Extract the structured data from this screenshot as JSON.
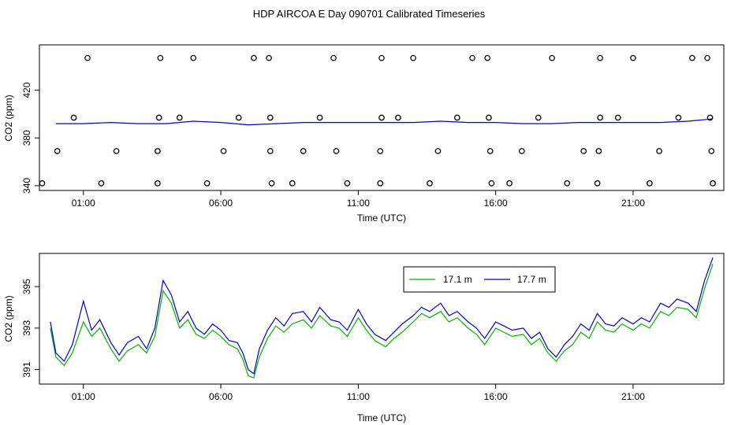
{
  "title": "HDP AIRCOA E  Day 090701  Calibrated Timeseries",
  "colors": {
    "series_17_1": "#00b400",
    "series_17_7": "#0000d0",
    "points": "#000000"
  },
  "chart_data": [
    {
      "type": "scatter",
      "title": "",
      "xlabel": "Time (UTC)",
      "ylabel": "CO2 (ppm)",
      "x_unit": "hours UTC",
      "xlim": [
        -0.6,
        24.3
      ],
      "ylim": [
        336,
        458
      ],
      "x_ticks": [
        1,
        6,
        11,
        16,
        21
      ],
      "x_tick_labels": [
        "01:00",
        "06:00",
        "11:00",
        "16:00",
        "21:00"
      ],
      "y_ticks": [
        340,
        380,
        420
      ],
      "y_tick_labels": [
        "340",
        "380",
        "420"
      ],
      "series": [
        {
          "values_line": {
            "x": [
              0.0,
              1.0,
              2.0,
              3.0,
              4.0,
              5.0,
              6.0,
              7.0,
              8.0,
              9.0,
              10.0,
              11.0,
              12.0,
              13.0,
              14.0,
              15.0,
              16.0,
              17.0,
              18.0,
              19.0,
              20.0,
              21.0,
              22.0,
              23.0,
              23.9
            ],
            "y": [
              392,
              392,
              393,
              392,
              392,
              394,
              393,
              391,
              392,
              393,
              393,
              393,
              393,
              393,
              394,
              393,
              393,
              392,
              392,
              393,
              393,
              393,
              393,
              394,
              396
            ]
          }
        }
      ],
      "points": {
        "x": [
          1.15,
          3.8,
          5.0,
          7.2,
          7.75,
          10.1,
          11.85,
          13.0,
          15.15,
          15.7,
          18.05,
          19.8,
          21.0,
          23.15,
          23.7,
          0.65,
          3.75,
          4.5,
          6.65,
          7.8,
          9.6,
          11.85,
          12.45,
          14.6,
          15.75,
          17.55,
          19.8,
          20.45,
          22.65,
          23.8,
          0.05,
          2.2,
          3.7,
          6.1,
          7.8,
          9.0,
          10.2,
          11.8,
          13.9,
          15.8,
          16.95,
          19.2,
          19.75,
          21.95,
          23.85,
          -0.5,
          1.65,
          3.7,
          5.5,
          7.85,
          8.6,
          10.6,
          11.8,
          13.6,
          15.85,
          16.5,
          18.6,
          19.7,
          21.6,
          23.9
        ],
        "y": [
          447,
          447,
          447,
          447,
          447,
          447,
          447,
          447,
          447,
          447,
          447,
          447,
          447,
          447,
          447,
          397,
          397,
          397,
          397,
          397,
          397,
          397,
          397,
          397,
          397,
          397,
          397,
          397,
          397,
          397,
          369,
          369,
          369,
          369,
          369,
          369,
          369,
          369,
          369,
          369,
          369,
          369,
          369,
          369,
          369,
          342,
          342,
          342,
          342,
          342,
          342,
          342,
          342,
          342,
          342,
          342,
          342,
          342,
          342,
          342
        ]
      }
    },
    {
      "type": "line",
      "title": "",
      "xlabel": "Time (UTC)",
      "ylabel": "CO2 (ppm)",
      "x_unit": "hours UTC",
      "xlim": [
        -0.6,
        24.3
      ],
      "ylim": [
        390.3,
        396.6
      ],
      "x_ticks": [
        1,
        6,
        11,
        16,
        21
      ],
      "x_tick_labels": [
        "01:00",
        "06:00",
        "11:00",
        "16:00",
        "21:00"
      ],
      "y_ticks": [
        391,
        393,
        395
      ],
      "y_tick_labels": [
        "391",
        "393",
        "395"
      ],
      "legend": "top-center",
      "legend_entries": [
        "17.1 m",
        "17.7 m"
      ],
      "series": [
        {
          "name": "17.1 m",
          "x": [
            -0.2,
            0.0,
            0.3,
            0.6,
            1.0,
            1.3,
            1.6,
            2.0,
            2.3,
            2.6,
            3.0,
            3.3,
            3.6,
            3.9,
            4.2,
            4.5,
            4.8,
            5.1,
            5.4,
            5.7,
            6.0,
            6.3,
            6.6,
            6.8,
            7.0,
            7.2,
            7.4,
            7.7,
            8.0,
            8.3,
            8.6,
            9.0,
            9.3,
            9.6,
            10.0,
            10.3,
            10.6,
            11.0,
            11.3,
            11.6,
            12.0,
            12.3,
            12.6,
            13.0,
            13.3,
            13.6,
            14.0,
            14.3,
            14.6,
            15.0,
            15.3,
            15.6,
            16.0,
            16.3,
            16.6,
            17.0,
            17.3,
            17.6,
            17.9,
            18.2,
            18.5,
            18.8,
            19.1,
            19.4,
            19.7,
            20.0,
            20.3,
            20.6,
            21.0,
            21.3,
            21.6,
            22.0,
            22.3,
            22.6,
            23.0,
            23.3,
            23.6,
            23.9
          ],
          "y": [
            393.0,
            391.6,
            391.2,
            391.8,
            393.3,
            392.6,
            393.0,
            392.0,
            391.4,
            391.9,
            392.2,
            391.8,
            392.6,
            394.8,
            394.2,
            393.0,
            393.4,
            392.7,
            392.5,
            392.9,
            392.6,
            392.2,
            392.0,
            391.5,
            390.7,
            390.6,
            391.6,
            392.5,
            393.1,
            392.8,
            393.2,
            393.4,
            393.0,
            393.6,
            393.1,
            393.0,
            392.6,
            393.5,
            392.9,
            392.4,
            392.1,
            392.5,
            392.8,
            393.3,
            393.7,
            393.5,
            393.8,
            393.3,
            393.5,
            393.0,
            392.7,
            392.2,
            393.0,
            392.8,
            392.6,
            392.7,
            392.2,
            392.5,
            391.8,
            391.4,
            391.9,
            392.2,
            392.8,
            392.5,
            393.3,
            392.9,
            392.8,
            393.2,
            392.9,
            393.2,
            393.0,
            393.8,
            393.6,
            394.0,
            393.9,
            393.5,
            394.9,
            396.1
          ]
        },
        {
          "name": "17.7 m",
          "x": [
            -0.2,
            0.0,
            0.3,
            0.6,
            1.0,
            1.3,
            1.6,
            2.0,
            2.3,
            2.6,
            3.0,
            3.3,
            3.6,
            3.9,
            4.2,
            4.5,
            4.8,
            5.1,
            5.4,
            5.7,
            6.0,
            6.3,
            6.6,
            6.8,
            7.0,
            7.2,
            7.4,
            7.7,
            8.0,
            8.3,
            8.6,
            9.0,
            9.3,
            9.6,
            10.0,
            10.3,
            10.6,
            11.0,
            11.3,
            11.6,
            12.0,
            12.3,
            12.6,
            13.0,
            13.3,
            13.6,
            14.0,
            14.3,
            14.6,
            15.0,
            15.3,
            15.6,
            16.0,
            16.3,
            16.6,
            17.0,
            17.3,
            17.6,
            17.9,
            18.2,
            18.5,
            18.8,
            19.1,
            19.4,
            19.7,
            20.0,
            20.3,
            20.6,
            21.0,
            21.3,
            21.6,
            22.0,
            22.3,
            22.6,
            23.0,
            23.3,
            23.6,
            23.9
          ],
          "y": [
            393.3,
            391.8,
            391.4,
            392.2,
            394.3,
            392.9,
            393.4,
            392.3,
            391.7,
            392.3,
            392.6,
            392.0,
            393.0,
            395.3,
            394.6,
            393.3,
            393.8,
            393.0,
            392.7,
            393.2,
            392.9,
            392.4,
            392.3,
            391.8,
            391.0,
            390.8,
            392.0,
            392.9,
            393.5,
            393.1,
            393.7,
            393.8,
            393.3,
            394.0,
            393.4,
            393.3,
            392.9,
            393.9,
            393.2,
            392.7,
            392.4,
            392.8,
            393.2,
            393.6,
            394.0,
            393.8,
            394.2,
            393.6,
            393.8,
            393.3,
            393.0,
            392.5,
            393.3,
            393.1,
            392.9,
            393.0,
            392.5,
            392.8,
            392.0,
            391.6,
            392.2,
            392.6,
            393.2,
            392.9,
            393.7,
            393.2,
            393.1,
            393.5,
            393.2,
            393.5,
            393.3,
            394.2,
            394.0,
            394.4,
            394.2,
            393.8,
            395.3,
            396.4
          ]
        }
      ]
    }
  ]
}
